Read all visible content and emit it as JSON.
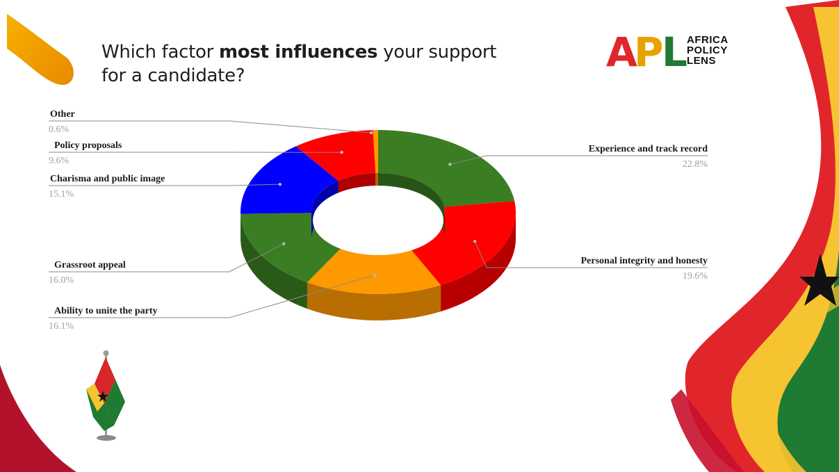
{
  "title": {
    "prefix": "Which factor ",
    "emphasis": "most influences",
    "suffix": " your support",
    "line2": "for a candidate?"
  },
  "logo": {
    "letters": [
      "A",
      "P",
      "L"
    ],
    "words": [
      "AFRICA",
      "POLICY",
      "LENS"
    ],
    "colors": {
      "a": "#e0262b",
      "p": "#e8a200",
      "l": "#1f7a32"
    }
  },
  "chart_data": {
    "type": "pie",
    "variant": "3d-donut",
    "title": "Which factor most influences your support for a candidate?",
    "slices": [
      {
        "label": "Experience and track record",
        "value": 22.8,
        "display": "22.8%",
        "color": "#3a7d22"
      },
      {
        "label": "Personal integrity and honesty",
        "value": 19.6,
        "display": "19.6%",
        "color": "#ff0000"
      },
      {
        "label": "Ability to unite the party",
        "value": 16.1,
        "display": "16.1%",
        "color": "#ff9900"
      },
      {
        "label": "Grassroot appeal",
        "value": 16.0,
        "display": "16.0%",
        "color": "#3a7d22"
      },
      {
        "label": "Charisma and public image",
        "value": 15.1,
        "display": "15.1%",
        "color": "#0000ff"
      },
      {
        "label": "Policy proposals",
        "value": 9.6,
        "display": "9.6%",
        "color": "#ff0000"
      },
      {
        "label": "Other",
        "value": 0.6,
        "display": "0.6%",
        "color": "#ff9900"
      }
    ]
  },
  "colors": {
    "ghana_red": "#d9262a",
    "ghana_gold": "#f6c431",
    "ghana_green": "#1f7a32",
    "orange_accent": "#f2a400",
    "label_value_gray": "#a0a0a0"
  }
}
